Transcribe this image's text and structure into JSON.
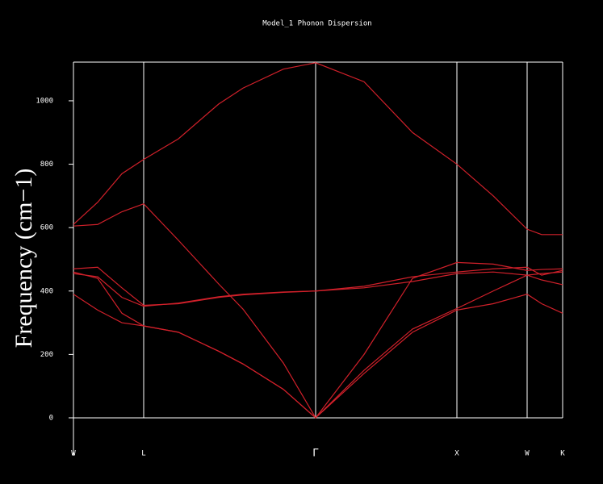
{
  "chart_data": {
    "type": "line",
    "title": "Model_1 Phonon Dispersion",
    "y_label": "Frequency (cm−1)",
    "x": [
      0,
      0.3,
      0.6,
      0.87,
      1.3,
      1.8,
      2.1,
      2.6,
      3.0,
      3.6,
      4.2,
      4.75,
      5.2,
      5.62,
      5.8,
      6.06
    ],
    "series": [
      {
        "color": "#d0202a",
        "values": [
          610,
          680,
          770,
          815,
          880,
          990,
          1040,
          1100,
          1120,
          1060,
          900,
          800,
          700,
          595,
          578,
          578
        ]
      },
      {
        "color": "#d0202a",
        "values": [
          605,
          610,
          650,
          675,
          560,
          422,
          343,
          173,
          0,
          200,
          440,
          490,
          485,
          465,
          468,
          470
        ]
      },
      {
        "color": "#d0202a",
        "values": [
          470,
          475,
          410,
          355,
          360,
          380,
          388,
          396,
          400,
          410,
          430,
          455,
          460,
          450,
          455,
          460
        ]
      },
      {
        "color": "#d0202a",
        "values": [
          460,
          440,
          330,
          290,
          270,
          210,
          170,
          90,
          0,
          150,
          280,
          345,
          400,
          450,
          435,
          420
        ]
      },
      {
        "color": "#d0202a",
        "values": [
          390,
          340,
          300,
          290,
          270,
          210,
          170,
          90,
          0,
          140,
          270,
          340,
          360,
          390,
          360,
          330
        ]
      },
      {
        "color": "#d0202a",
        "values": [
          455,
          445,
          380,
          352,
          362,
          382,
          390,
          397,
          400,
          415,
          445,
          460,
          470,
          475,
          450,
          465
        ]
      }
    ],
    "xlim": [
      0,
      6.06
    ],
    "xticks": [
      {
        "value": 0,
        "label": "W"
      },
      {
        "value": 0.87,
        "label": "L"
      },
      {
        "value": 3.0,
        "label": "Γ"
      },
      {
        "value": 4.75,
        "label": "X"
      },
      {
        "value": 5.62,
        "label": "W"
      },
      {
        "value": 6.06,
        "label": "K"
      }
    ],
    "ylim": [
      -112,
      1122
    ],
    "yticks": [
      0,
      200,
      400,
      600,
      800,
      1000
    ],
    "grid": true
  }
}
